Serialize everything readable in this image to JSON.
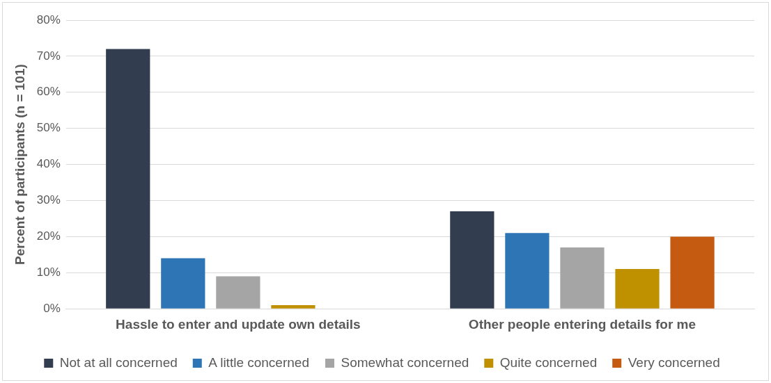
{
  "chart_data": {
    "type": "bar",
    "ylabel": "Percent of participants (n = 101)",
    "categories": [
      "Hassle to enter and update own details",
      "Other people entering details for me"
    ],
    "series": [
      {
        "name": "Not at all concerned",
        "color": "#323d4f",
        "values": [
          72,
          27
        ]
      },
      {
        "name": "A little concerned",
        "color": "#2e75b6",
        "values": [
          14,
          21
        ]
      },
      {
        "name": "Somewhat concerned",
        "color": "#a5a5a5",
        "values": [
          9,
          17
        ]
      },
      {
        "name": "Quite concerned",
        "color": "#bf9000",
        "values": [
          1,
          11
        ]
      },
      {
        "name": "Very concerned",
        "color": "#c55a11",
        "values": [
          0,
          20
        ]
      }
    ],
    "ylim": [
      0,
      80
    ],
    "yticks": [
      {
        "value": 0,
        "label": "0%"
      },
      {
        "value": 10,
        "label": "10%"
      },
      {
        "value": 20,
        "label": "20%"
      },
      {
        "value": 30,
        "label": "30%"
      },
      {
        "value": 40,
        "label": "40%"
      },
      {
        "value": 50,
        "label": "50%"
      },
      {
        "value": 60,
        "label": "60%"
      },
      {
        "value": 70,
        "label": "70%"
      },
      {
        "value": 80,
        "label": "80%"
      }
    ],
    "grid": "y",
    "legend": "bottom"
  }
}
